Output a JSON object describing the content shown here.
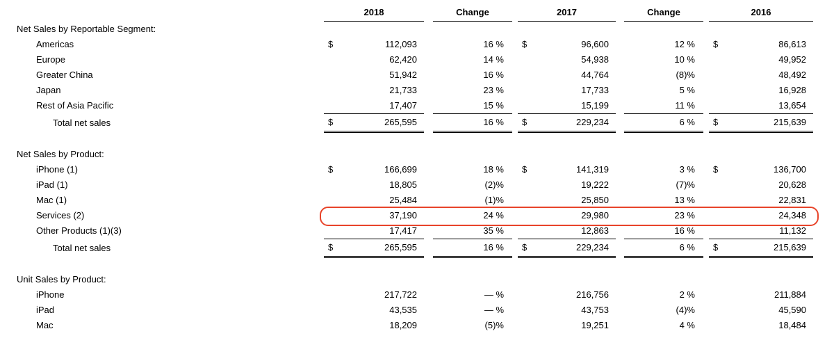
{
  "header": {
    "y2018": "2018",
    "change_a": "Change",
    "y2017": "2017",
    "change_b": "Change",
    "y2016": "2016"
  },
  "sections": [
    {
      "title": "Net Sales by Reportable Segment:",
      "rows": [
        {
          "label": "Americas",
          "cur1": "$",
          "v2018": "112,093",
          "chg1": "16 %",
          "cur2": "$",
          "v2017": "96,600",
          "chg2": "12 %",
          "cur3": "$",
          "v2016": "86,613"
        },
        {
          "label": "Europe",
          "v2018": "62,420",
          "chg1": "14 %",
          "v2017": "54,938",
          "chg2": "10 %",
          "v2016": "49,952"
        },
        {
          "label": "Greater China",
          "v2018": "51,942",
          "chg1": "16 %",
          "v2017": "44,764",
          "chg2": "(8)%",
          "v2016": "48,492"
        },
        {
          "label": "Japan",
          "v2018": "21,733",
          "chg1": "23 %",
          "v2017": "17,733",
          "chg2": "5 %",
          "v2016": "16,928"
        },
        {
          "label": "Rest of Asia Pacific",
          "v2018": "17,407",
          "chg1": "15 %",
          "v2017": "15,199",
          "chg2": "11 %",
          "v2016": "13,654"
        }
      ],
      "total": {
        "label": "Total net sales",
        "cur1": "$",
        "v2018": "265,595",
        "chg1": "16 %",
        "cur2": "$",
        "v2017": "229,234",
        "chg2": "6 %",
        "cur3": "$",
        "v2016": "215,639"
      }
    },
    {
      "title": "Net Sales by Product:",
      "rows": [
        {
          "label": "iPhone (1)",
          "cur1": "$",
          "v2018": "166,699",
          "chg1": "18 %",
          "cur2": "$",
          "v2017": "141,319",
          "chg2": "3 %",
          "cur3": "$",
          "v2016": "136,700"
        },
        {
          "label": "iPad (1)",
          "v2018": "18,805",
          "chg1": "(2)%",
          "v2017": "19,222",
          "chg2": "(7)%",
          "v2016": "20,628"
        },
        {
          "label": "Mac (1)",
          "v2018": "25,484",
          "chg1": "(1)%",
          "v2017": "25,850",
          "chg2": "13 %",
          "v2016": "22,831"
        },
        {
          "label": "Services (2)",
          "v2018": "37,190",
          "chg1": "24 %",
          "v2017": "29,980",
          "chg2": "23 %",
          "v2016": "24,348",
          "highlighted": true
        },
        {
          "label": "Other Products (1)(3)",
          "v2018": "17,417",
          "chg1": "35 %",
          "v2017": "12,863",
          "chg2": "16 %",
          "v2016": "11,132"
        }
      ],
      "total": {
        "label": "Total net sales",
        "cur1": "$",
        "v2018": "265,595",
        "chg1": "16 %",
        "cur2": "$",
        "v2017": "229,234",
        "chg2": "6 %",
        "cur3": "$",
        "v2016": "215,639"
      }
    },
    {
      "title": "Unit Sales by Product:",
      "rows": [
        {
          "label": "iPhone",
          "v2018": "217,722",
          "chg1": "— %",
          "v2017": "216,756",
          "chg2": "2 %",
          "v2016": "211,884"
        },
        {
          "label": "iPad",
          "v2018": "43,535",
          "chg1": "— %",
          "v2017": "43,753",
          "chg2": "(4)%",
          "v2016": "45,590"
        },
        {
          "label": "Mac",
          "v2018": "18,209",
          "chg1": "(5)%",
          "v2017": "19,251",
          "chg2": "4 %",
          "v2016": "18,484"
        }
      ]
    }
  ],
  "highlight": {
    "row_label": "Services (2)",
    "color": "#e8442a"
  }
}
